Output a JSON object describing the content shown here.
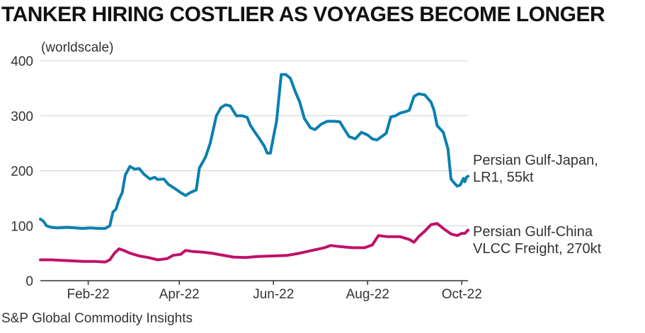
{
  "title": "TANKER HIRING COSTLIER AS VOYAGES BECOME LONGER",
  "unit_label": "(worldscale)",
  "source": "S&P Global Commodity Insights",
  "colors": {
    "series_1": "#0a7fb0",
    "series_2": "#c0106a",
    "grid": "#d0d0d0",
    "axis": "#333333"
  },
  "chart_data": {
    "type": "line",
    "x_range": [
      "2022-01-01",
      "2022-10-05"
    ],
    "ylim": [
      0,
      400
    ],
    "y_ticks": [
      0,
      100,
      200,
      300,
      400
    ],
    "x_ticks": [
      {
        "label": "Feb-22",
        "date": "2022-02-01"
      },
      {
        "label": "Apr-22",
        "date": "2022-04-01"
      },
      {
        "label": "Jun-22",
        "date": "2022-06-01"
      },
      {
        "label": "Aug-22",
        "date": "2022-08-01"
      },
      {
        "label": "Oct-22",
        "date": "2022-10-01"
      }
    ],
    "grid": true,
    "series": [
      {
        "name": "Persian Gulf-Japan, LR1, 55kt",
        "label_lines": [
          "Persian Gulf-Japan,",
          "LR1, 55kt"
        ],
        "points": [
          [
            "2022-01-01",
            112
          ],
          [
            "2022-01-03",
            108
          ],
          [
            "2022-01-05",
            100
          ],
          [
            "2022-01-08",
            97
          ],
          [
            "2022-01-12",
            96
          ],
          [
            "2022-01-18",
            97
          ],
          [
            "2022-01-24",
            96
          ],
          [
            "2022-01-28",
            95
          ],
          [
            "2022-02-02",
            96
          ],
          [
            "2022-02-08",
            95
          ],
          [
            "2022-02-12",
            95
          ],
          [
            "2022-02-15",
            100
          ],
          [
            "2022-02-17",
            125
          ],
          [
            "2022-02-19",
            130
          ],
          [
            "2022-02-21",
            148
          ],
          [
            "2022-02-23",
            160
          ],
          [
            "2022-02-25",
            192
          ],
          [
            "2022-02-28",
            208
          ],
          [
            "2022-03-03",
            203
          ],
          [
            "2022-03-06",
            204
          ],
          [
            "2022-03-09",
            194
          ],
          [
            "2022-03-13",
            185
          ],
          [
            "2022-03-16",
            188
          ],
          [
            "2022-03-18",
            184
          ],
          [
            "2022-03-22",
            185
          ],
          [
            "2022-03-25",
            175
          ],
          [
            "2022-03-29",
            168
          ],
          [
            "2022-04-02",
            160
          ],
          [
            "2022-04-05",
            155
          ],
          [
            "2022-04-08",
            160
          ],
          [
            "2022-04-12",
            165
          ],
          [
            "2022-04-14",
            205
          ],
          [
            "2022-04-18",
            225
          ],
          [
            "2022-04-21",
            250
          ],
          [
            "2022-04-25",
            300
          ],
          [
            "2022-04-28",
            315
          ],
          [
            "2022-05-01",
            320
          ],
          [
            "2022-05-04",
            318
          ],
          [
            "2022-05-08",
            300
          ],
          [
            "2022-05-12",
            300
          ],
          [
            "2022-05-15",
            297
          ],
          [
            "2022-05-17",
            283
          ],
          [
            "2022-05-20",
            270
          ],
          [
            "2022-05-23",
            258
          ],
          [
            "2022-05-26",
            245
          ],
          [
            "2022-05-28",
            232
          ],
          [
            "2022-05-30",
            232
          ],
          [
            "2022-06-01",
            262
          ],
          [
            "2022-06-03",
            290
          ],
          [
            "2022-06-06",
            375
          ],
          [
            "2022-06-09",
            375
          ],
          [
            "2022-06-12",
            368
          ],
          [
            "2022-06-15",
            345
          ],
          [
            "2022-06-18",
            325
          ],
          [
            "2022-06-21",
            295
          ],
          [
            "2022-06-25",
            278
          ],
          [
            "2022-06-28",
            275
          ],
          [
            "2022-07-02",
            285
          ],
          [
            "2022-07-06",
            290
          ],
          [
            "2022-07-10",
            290
          ],
          [
            "2022-07-14",
            289
          ],
          [
            "2022-07-17",
            275
          ],
          [
            "2022-07-20",
            262
          ],
          [
            "2022-07-24",
            258
          ],
          [
            "2022-07-28",
            270
          ],
          [
            "2022-08-01",
            265
          ],
          [
            "2022-08-04",
            258
          ],
          [
            "2022-08-07",
            256
          ],
          [
            "2022-08-10",
            262
          ],
          [
            "2022-08-13",
            268
          ],
          [
            "2022-08-16",
            298
          ],
          [
            "2022-08-19",
            300
          ],
          [
            "2022-08-22",
            305
          ],
          [
            "2022-08-25",
            307
          ],
          [
            "2022-08-28",
            310
          ],
          [
            "2022-08-31",
            335
          ],
          [
            "2022-09-03",
            340
          ],
          [
            "2022-09-07",
            338
          ],
          [
            "2022-09-11",
            325
          ],
          [
            "2022-09-13",
            310
          ],
          [
            "2022-09-15",
            282
          ],
          [
            "2022-09-19",
            270
          ],
          [
            "2022-09-22",
            240
          ],
          [
            "2022-09-24",
            185
          ],
          [
            "2022-09-26",
            178
          ],
          [
            "2022-09-28",
            172
          ],
          [
            "2022-09-30",
            174
          ],
          [
            "2022-10-01",
            180
          ],
          [
            "2022-10-02",
            186
          ],
          [
            "2022-10-03",
            180
          ],
          [
            "2022-10-04",
            188
          ],
          [
            "2022-10-05",
            190
          ]
        ]
      },
      {
        "name": "Persian Gulf-China VLCC Freight, 270kt",
        "label_lines": [
          "Persian Gulf-China",
          "VLCC Freight, 270kt"
        ],
        "points": [
          [
            "2022-01-01",
            38
          ],
          [
            "2022-01-08",
            38
          ],
          [
            "2022-01-15",
            37
          ],
          [
            "2022-01-22",
            36
          ],
          [
            "2022-01-29",
            35
          ],
          [
            "2022-02-05",
            35
          ],
          [
            "2022-02-12",
            34
          ],
          [
            "2022-02-15",
            38
          ],
          [
            "2022-02-18",
            50
          ],
          [
            "2022-02-21",
            58
          ],
          [
            "2022-02-24",
            55
          ],
          [
            "2022-02-28",
            50
          ],
          [
            "2022-03-06",
            45
          ],
          [
            "2022-03-12",
            42
          ],
          [
            "2022-03-18",
            38
          ],
          [
            "2022-03-24",
            40
          ],
          [
            "2022-03-28",
            46
          ],
          [
            "2022-04-02",
            48
          ],
          [
            "2022-04-05",
            55
          ],
          [
            "2022-04-10",
            53
          ],
          [
            "2022-04-16",
            52
          ],
          [
            "2022-04-22",
            50
          ],
          [
            "2022-04-28",
            47
          ],
          [
            "2022-05-06",
            43
          ],
          [
            "2022-05-14",
            42
          ],
          [
            "2022-05-22",
            44
          ],
          [
            "2022-06-01",
            45
          ],
          [
            "2022-06-10",
            46
          ],
          [
            "2022-06-18",
            50
          ],
          [
            "2022-06-26",
            55
          ],
          [
            "2022-07-04",
            60
          ],
          [
            "2022-07-08",
            64
          ],
          [
            "2022-07-14",
            62
          ],
          [
            "2022-07-22",
            60
          ],
          [
            "2022-07-30",
            60
          ],
          [
            "2022-08-04",
            65
          ],
          [
            "2022-08-08",
            82
          ],
          [
            "2022-08-14",
            80
          ],
          [
            "2022-08-22",
            80
          ],
          [
            "2022-08-28",
            75
          ],
          [
            "2022-08-31",
            70
          ],
          [
            "2022-09-03",
            80
          ],
          [
            "2022-09-07",
            90
          ],
          [
            "2022-09-11",
            102
          ],
          [
            "2022-09-15",
            104
          ],
          [
            "2022-09-19",
            95
          ],
          [
            "2022-09-24",
            85
          ],
          [
            "2022-09-28",
            82
          ],
          [
            "2022-10-01",
            86
          ],
          [
            "2022-10-03",
            86
          ],
          [
            "2022-10-05",
            92
          ]
        ]
      }
    ]
  }
}
